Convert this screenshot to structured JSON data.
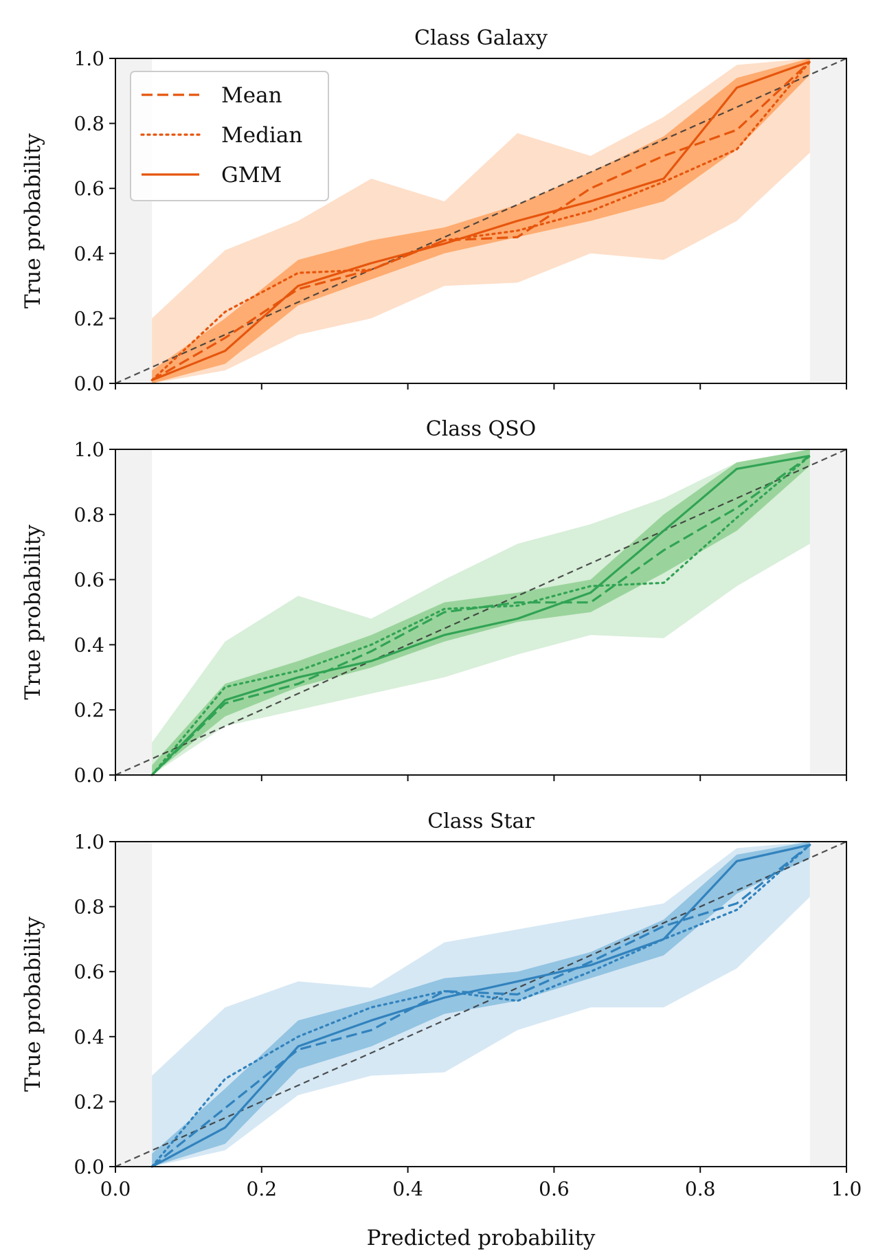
{
  "chart_data": [
    {
      "type": "line",
      "title": "Class Galaxy",
      "xlabel": "",
      "ylabel": "True probability",
      "xlim": [
        0.0,
        1.0
      ],
      "ylim": [
        0.0,
        1.0
      ],
      "xticks": [
        0.0,
        0.2,
        0.4,
        0.6,
        0.8,
        1.0
      ],
      "yticks": [
        "0.0",
        "0.2",
        "0.4",
        "0.6",
        "0.8",
        "1.0"
      ],
      "xtick_labels": [],
      "excluded_regions": [
        [
          0.0,
          0.05
        ],
        [
          0.95,
          1.0
        ]
      ],
      "color": "#e6550d",
      "band_color": "#fd8d3c",
      "x": [
        0.05,
        0.15,
        0.25,
        0.35,
        0.45,
        0.55,
        0.65,
        0.75,
        0.85,
        0.95
      ],
      "series": [
        {
          "name": "Mean",
          "style": "dashed",
          "values": [
            0.01,
            0.14,
            0.29,
            0.35,
            0.44,
            0.45,
            0.6,
            0.7,
            0.78,
            0.99
          ]
        },
        {
          "name": "Median",
          "style": "dotted",
          "values": [
            0.01,
            0.22,
            0.34,
            0.35,
            0.44,
            0.47,
            0.53,
            0.62,
            0.72,
            0.99
          ]
        },
        {
          "name": "GMM",
          "style": "solid",
          "values": [
            0.01,
            0.1,
            0.3,
            0.37,
            0.43,
            0.5,
            0.56,
            0.63,
            0.91,
            0.99
          ]
        }
      ],
      "band_outer": {
        "lower": [
          0.0,
          0.04,
          0.15,
          0.2,
          0.3,
          0.31,
          0.4,
          0.38,
          0.5,
          0.71
        ],
        "upper": [
          0.2,
          0.41,
          0.5,
          0.63,
          0.56,
          0.77,
          0.7,
          0.82,
          0.98,
          1.0
        ]
      },
      "band_inner": {
        "lower": [
          0.0,
          0.06,
          0.24,
          0.32,
          0.4,
          0.45,
          0.5,
          0.56,
          0.72,
          0.95
        ],
        "upper": [
          0.04,
          0.2,
          0.38,
          0.44,
          0.48,
          0.55,
          0.65,
          0.76,
          0.94,
          1.0
        ]
      }
    },
    {
      "type": "line",
      "title": "Class QSO",
      "xlabel": "",
      "ylabel": "True probability",
      "xlim": [
        0.0,
        1.0
      ],
      "ylim": [
        0.0,
        1.0
      ],
      "xticks": [
        0.0,
        0.2,
        0.4,
        0.6,
        0.8,
        1.0
      ],
      "yticks": [
        "0.0",
        "0.2",
        "0.4",
        "0.6",
        "0.8",
        "1.0"
      ],
      "xtick_labels": [],
      "excluded_regions": [
        [
          0.0,
          0.05
        ],
        [
          0.95,
          1.0
        ]
      ],
      "color": "#31a354",
      "band_color": "#74c476",
      "x": [
        0.05,
        0.15,
        0.25,
        0.35,
        0.45,
        0.55,
        0.65,
        0.75,
        0.85,
        0.95
      ],
      "series": [
        {
          "name": "Mean",
          "style": "dashed",
          "values": [
            0.0,
            0.22,
            0.28,
            0.38,
            0.5,
            0.53,
            0.53,
            0.69,
            0.82,
            0.98
          ]
        },
        {
          "name": "Median",
          "style": "dotted",
          "values": [
            0.0,
            0.27,
            0.32,
            0.4,
            0.51,
            0.52,
            0.58,
            0.59,
            0.79,
            0.98
          ]
        },
        {
          "name": "GMM",
          "style": "solid",
          "values": [
            0.0,
            0.23,
            0.3,
            0.35,
            0.43,
            0.48,
            0.56,
            0.75,
            0.94,
            0.98
          ]
        }
      ],
      "band_outer": {
        "lower": [
          0.0,
          0.15,
          0.2,
          0.25,
          0.3,
          0.37,
          0.43,
          0.42,
          0.58,
          0.71
        ],
        "upper": [
          0.1,
          0.41,
          0.55,
          0.48,
          0.6,
          0.71,
          0.77,
          0.85,
          0.96,
          1.0
        ]
      },
      "band_inner": {
        "lower": [
          0.0,
          0.18,
          0.27,
          0.33,
          0.41,
          0.47,
          0.5,
          0.62,
          0.75,
          0.95
        ],
        "upper": [
          0.03,
          0.28,
          0.35,
          0.43,
          0.53,
          0.56,
          0.6,
          0.8,
          0.96,
          1.0
        ]
      }
    },
    {
      "type": "line",
      "title": "Class Star",
      "xlabel": "Predicted probability",
      "ylabel": "True probability",
      "xlim": [
        0.0,
        1.0
      ],
      "ylim": [
        0.0,
        1.0
      ],
      "xticks": [
        0.0,
        0.2,
        0.4,
        0.6,
        0.8,
        1.0
      ],
      "yticks": [
        "0.0",
        "0.2",
        "0.4",
        "0.6",
        "0.8",
        "1.0"
      ],
      "xtick_labels": [
        "0.0",
        "0.2",
        "0.4",
        "0.6",
        "0.8",
        "1.0"
      ],
      "excluded_regions": [
        [
          0.0,
          0.05
        ],
        [
          0.95,
          1.0
        ]
      ],
      "color": "#3182bd",
      "band_color": "#6baed6",
      "x": [
        0.05,
        0.15,
        0.25,
        0.35,
        0.45,
        0.55,
        0.65,
        0.75,
        0.85,
        0.95
      ],
      "series": [
        {
          "name": "Mean",
          "style": "dashed",
          "values": [
            0.0,
            0.18,
            0.36,
            0.42,
            0.54,
            0.53,
            0.63,
            0.74,
            0.81,
            0.99
          ]
        },
        {
          "name": "Median",
          "style": "dotted",
          "values": [
            0.0,
            0.27,
            0.4,
            0.49,
            0.54,
            0.51,
            0.6,
            0.7,
            0.79,
            0.99
          ]
        },
        {
          "name": "GMM",
          "style": "solid",
          "values": [
            0.0,
            0.12,
            0.37,
            0.45,
            0.52,
            0.57,
            0.62,
            0.7,
            0.94,
            0.99
          ]
        }
      ],
      "band_outer": {
        "lower": [
          0.0,
          0.05,
          0.22,
          0.28,
          0.29,
          0.42,
          0.49,
          0.49,
          0.61,
          0.83
        ],
        "upper": [
          0.28,
          0.49,
          0.57,
          0.55,
          0.69,
          0.73,
          0.77,
          0.81,
          0.98,
          1.0
        ]
      },
      "band_inner": {
        "lower": [
          0.0,
          0.07,
          0.3,
          0.37,
          0.47,
          0.51,
          0.58,
          0.65,
          0.84,
          0.95
        ],
        "upper": [
          0.04,
          0.24,
          0.45,
          0.51,
          0.58,
          0.6,
          0.66,
          0.76,
          0.96,
          1.0
        ]
      }
    }
  ],
  "legend": {
    "location": "upper-left of top panel",
    "entries": [
      "Mean",
      "Median",
      "GMM"
    ]
  }
}
